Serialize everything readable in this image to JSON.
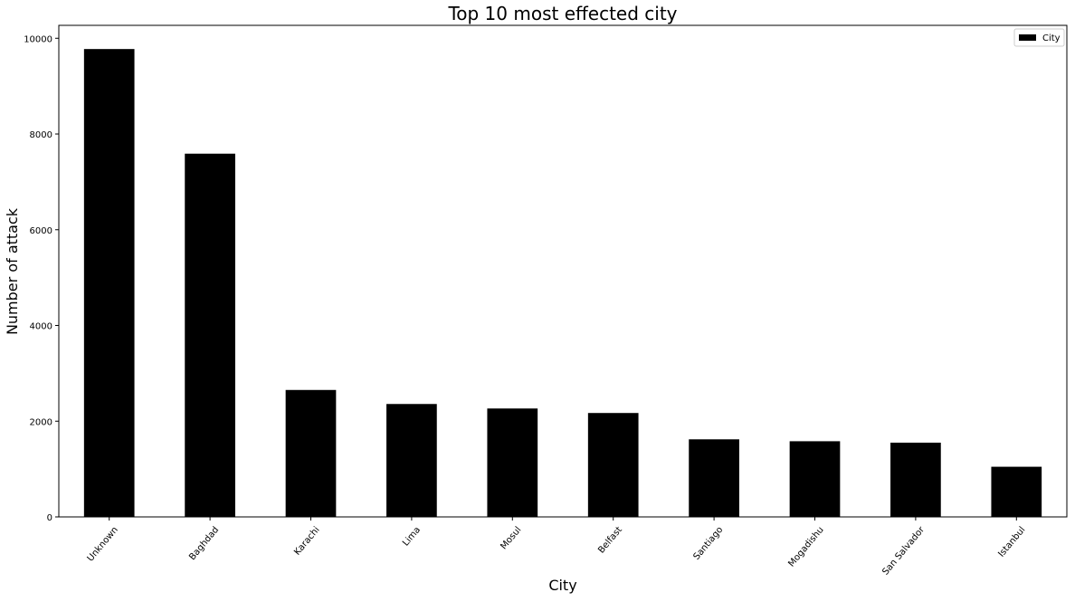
{
  "chart_data": {
    "type": "bar",
    "title": "Top 10 most effected city",
    "xlabel": "City",
    "ylabel": "Number of attack",
    "categories": [
      "Unknown",
      "Baghdad",
      "Karachi",
      "Lima",
      "Mosul",
      "Belfast",
      "Santiago",
      "Mogadishu",
      "San Salvador",
      "Istanbul"
    ],
    "series": [
      {
        "name": "City",
        "color": "#000000",
        "values": [
          9775,
          7589,
          2652,
          2359,
          2265,
          2171,
          1621,
          1581,
          1551,
          1048
        ]
      }
    ],
    "ylim": [
      0,
      10270
    ],
    "yticks": [
      0,
      2000,
      4000,
      6000,
      8000,
      10000
    ],
    "grid": false,
    "legend": {
      "position": "top-right"
    }
  }
}
